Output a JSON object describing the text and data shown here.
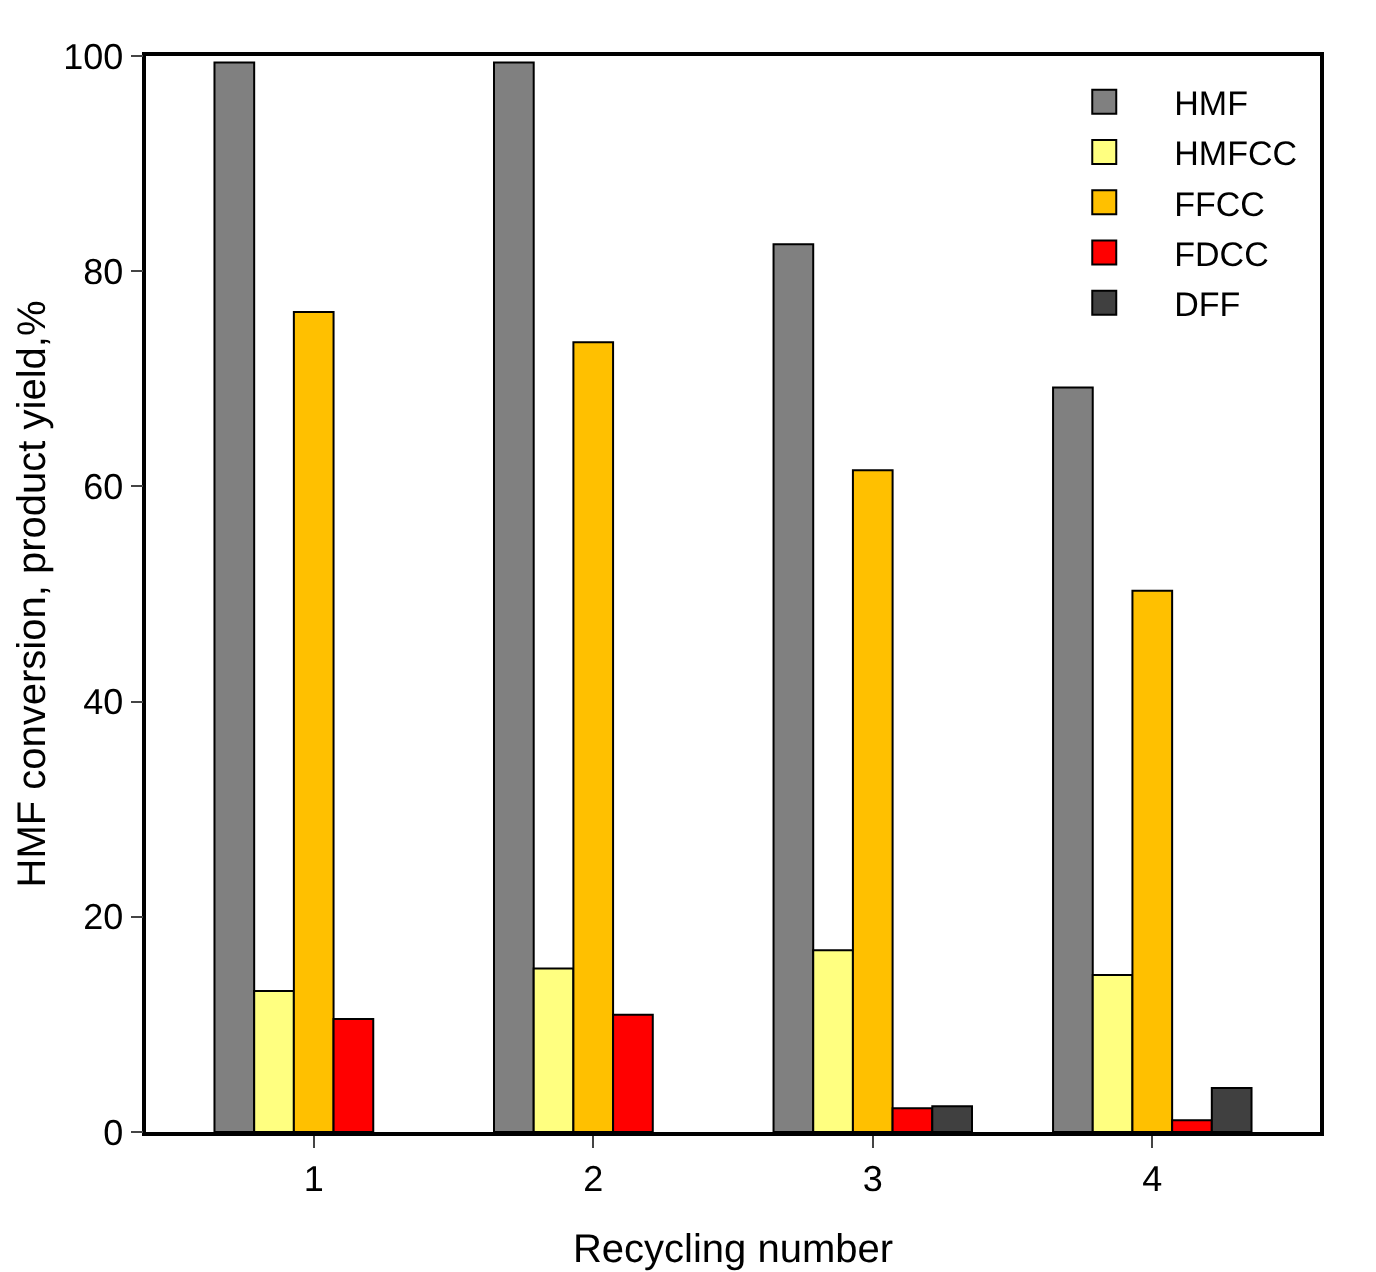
{
  "chart_data": {
    "type": "bar",
    "xlabel": "Recycling number",
    "ylabel": "HMF conversion, product yield,%",
    "categories": [
      "1",
      "2",
      "3",
      "4"
    ],
    "series": [
      {
        "name": "HMF",
        "color": "#808080",
        "values": [
          99.4,
          99.4,
          82.5,
          69.2
        ]
      },
      {
        "name": "HMFCC",
        "color": "#ffff80",
        "values": [
          13.1,
          15.2,
          16.9,
          14.6
        ]
      },
      {
        "name": "FFCC",
        "color": "#ffc000",
        "values": [
          76.2,
          73.4,
          61.5,
          50.3
        ]
      },
      {
        "name": "FDCC",
        "color": "#ff0000",
        "values": [
          10.5,
          10.9,
          2.2,
          1.1
        ]
      },
      {
        "name": "DFF",
        "color": "#404040",
        "values": [
          null,
          null,
          2.4,
          4.1
        ]
      }
    ],
    "ylim": [
      0,
      100
    ],
    "yticks": [
      0,
      20,
      40,
      60,
      80,
      100
    ],
    "grid": false,
    "legend": "top right"
  }
}
